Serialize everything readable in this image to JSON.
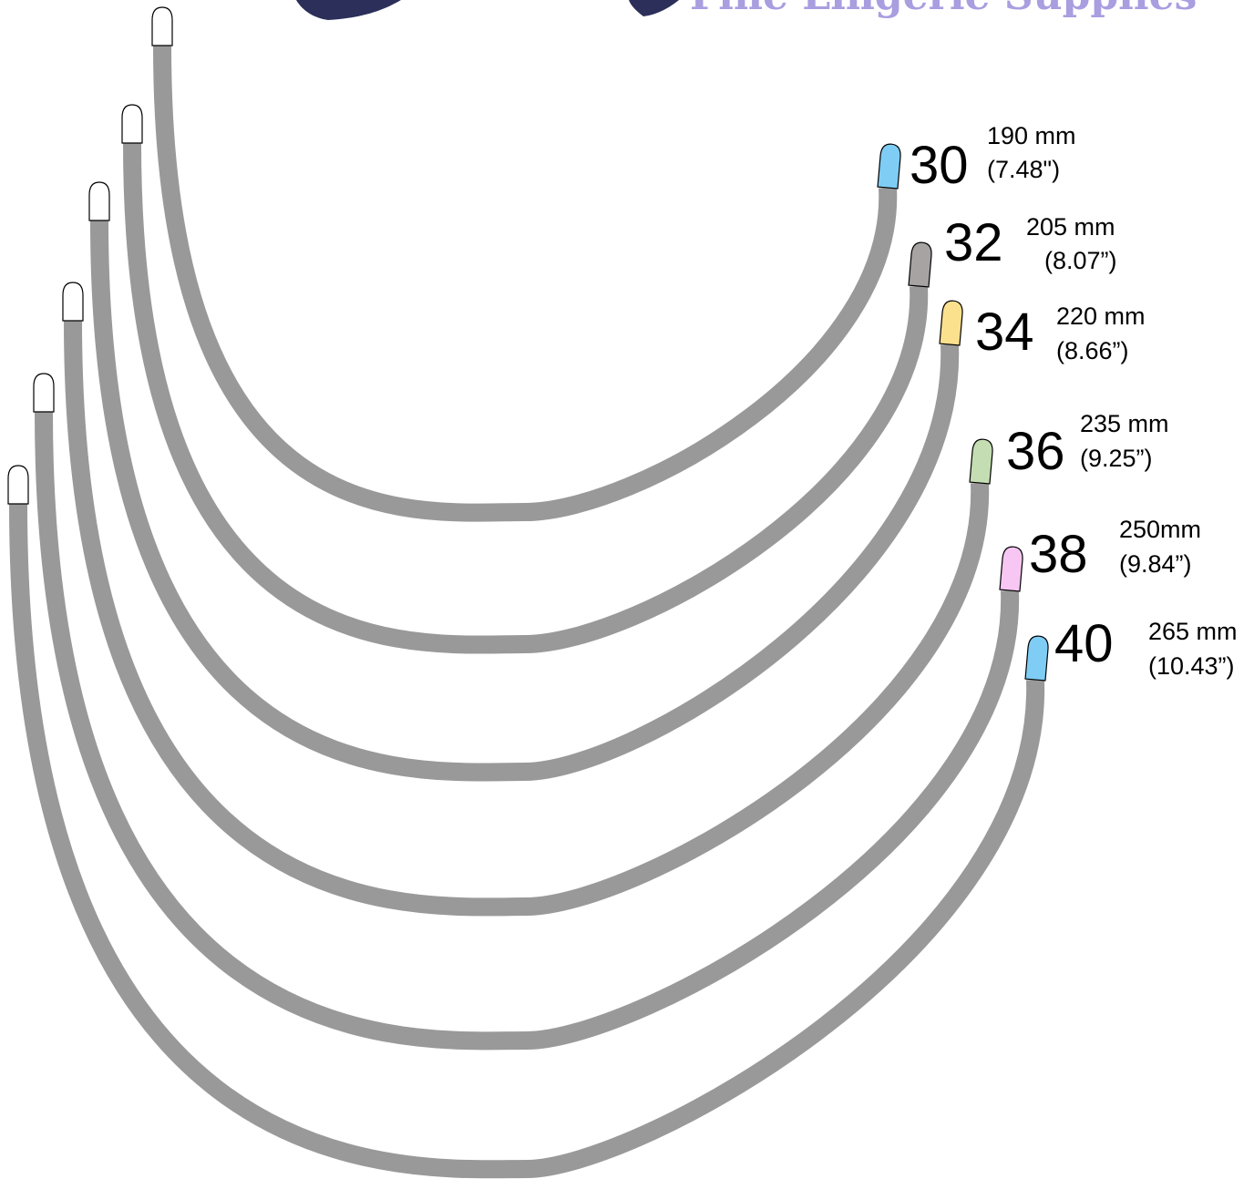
{
  "brand": {
    "name": "Fine Lingerie Supplies",
    "logo": "moon-logo-icon",
    "logo_color": "#2b2f5a",
    "text_color": "#a99ee0"
  },
  "wire_color": "#999999",
  "wires": [
    {
      "size": "30",
      "length_mm": "190 mm",
      "length_in": "(7.48\")",
      "tip_color": "#7fcdf5"
    },
    {
      "size": "32",
      "length_mm": "205 mm",
      "length_in": "(8.07”)",
      "tip_color": "#a7a3a3"
    },
    {
      "size": "34",
      "length_mm": "220 mm",
      "length_in": "(8.66”)",
      "tip_color": "#fbe08e"
    },
    {
      "size": "36",
      "length_mm": "235 mm",
      "length_in": "(9.25”)",
      "tip_color": "#c4ddb2"
    },
    {
      "size": "38",
      "length_mm": "250mm",
      "length_in": "(9.84”)",
      "tip_color": "#f7c6f3"
    },
    {
      "size": "40",
      "length_mm": "265 mm",
      "length_in": "(10.43”)",
      "tip_color": "#7fcdf5"
    }
  ]
}
